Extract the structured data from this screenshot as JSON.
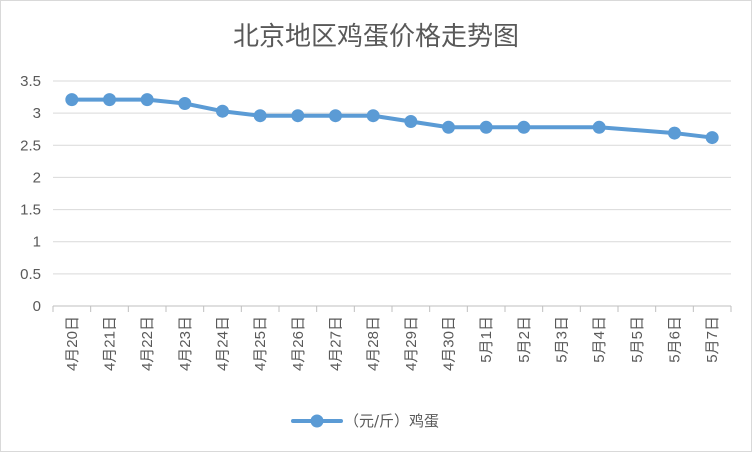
{
  "chart_data": {
    "type": "line",
    "title": "北京地区鸡蛋价格走势图",
    "xlabel": "",
    "ylabel": "",
    "categories": [
      "4月20日",
      "4月21日",
      "4月22日",
      "4月23日",
      "4月24日",
      "4月25日",
      "4月26日",
      "4月27日",
      "4月28日",
      "4月29日",
      "4月30日",
      "5月1日",
      "5月2日",
      "5月3日",
      "5月4日",
      "5月5日",
      "5月6日",
      "5月7日"
    ],
    "series": [
      {
        "name": "（元/斤）鸡蛋",
        "color": "#5b9bd5",
        "values": [
          3.21,
          3.21,
          3.21,
          3.15,
          3.03,
          2.96,
          2.96,
          2.96,
          2.96,
          2.87,
          2.78,
          2.78,
          2.78,
          null,
          2.78,
          null,
          2.69,
          2.62
        ]
      }
    ],
    "ylim": [
      0,
      3.5
    ],
    "yticks": [
      "0",
      "0.5",
      "1",
      "1.5",
      "2",
      "2.5",
      "3",
      "3.5"
    ],
    "grid": true,
    "legend": "bottom"
  }
}
